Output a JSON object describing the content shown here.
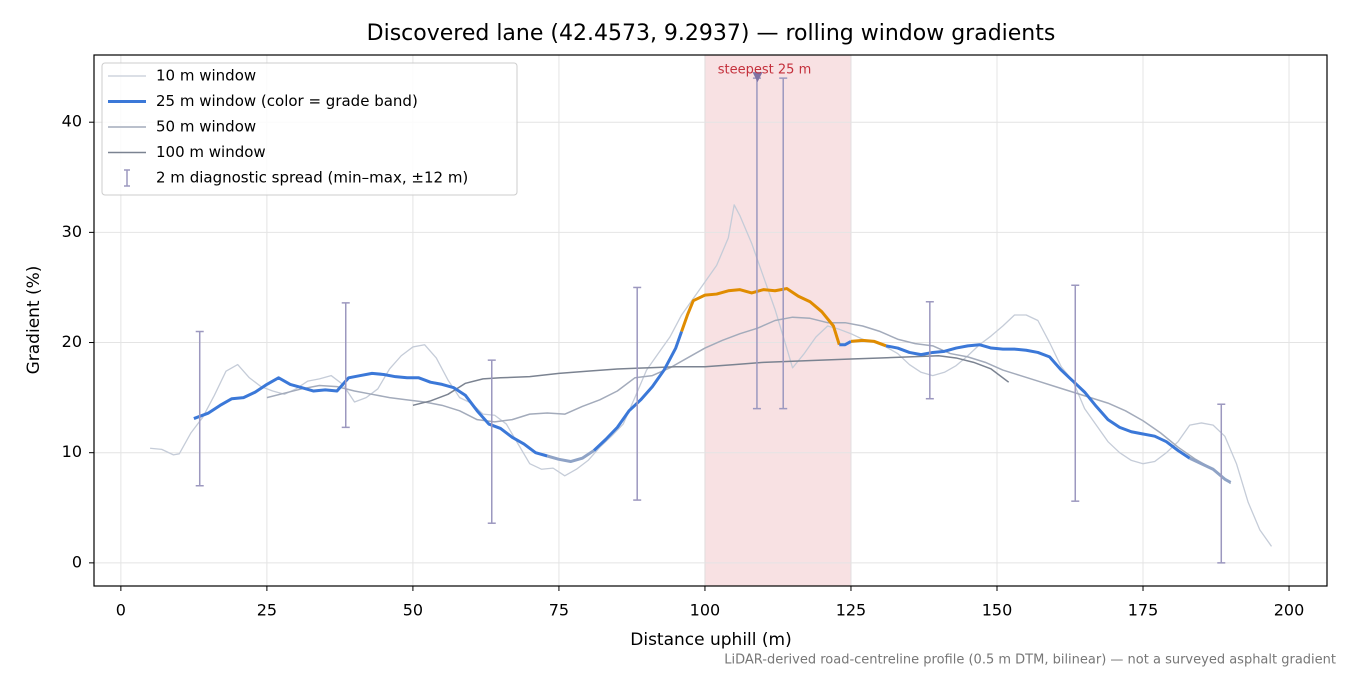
{
  "chart_data": {
    "type": "line",
    "title": "Discovered lane (42.4573, 9.2937) — rolling window gradients",
    "x_label": "Distance uphill (m)",
    "y_label": "Gradient (%)",
    "footnote": "LiDAR-derived road-centreline profile (0.5 m DTM, bilinear) — not a surveyed asphalt gradient",
    "xlim": [
      -4.6,
      206.5
    ],
    "ylim": [
      -2.1,
      46.1
    ],
    "xticks": [
      0,
      25,
      50,
      75,
      100,
      125,
      150,
      175,
      200
    ],
    "yticks": [
      0,
      10,
      20,
      30,
      40
    ],
    "grid": true,
    "legend": "upper left",
    "series": [
      {
        "name": "10 m window",
        "color": "#c5ccd8",
        "width": 1.3,
        "x": [
          5,
          7,
          9,
          10,
          12,
          14,
          16,
          18,
          20,
          22,
          24,
          26,
          28,
          30,
          32,
          34,
          36,
          38,
          40,
          42,
          44,
          46,
          48,
          50,
          52,
          54,
          56,
          58,
          60,
          62,
          64,
          66,
          68,
          70,
          72,
          74,
          76,
          78,
          80,
          82,
          84,
          86,
          88,
          90,
          92,
          94,
          96,
          98,
          100,
          102,
          104,
          105,
          106,
          108,
          110,
          112,
          114,
          115,
          117,
          119,
          121,
          123,
          125,
          127,
          129,
          131,
          133,
          135,
          137,
          139,
          141,
          143,
          145,
          147,
          149,
          151,
          153,
          155,
          157,
          159,
          161,
          163,
          165,
          167,
          169,
          171,
          173,
          175,
          177,
          179,
          181,
          183,
          185,
          187,
          189,
          191,
          193,
          195,
          197
        ],
        "values": [
          10.4,
          10.3,
          9.8,
          9.9,
          11.8,
          13.2,
          15.2,
          17.4,
          18.0,
          16.8,
          16.0,
          15.6,
          15.3,
          15.8,
          16.5,
          16.7,
          17.0,
          16.2,
          14.6,
          15.0,
          15.8,
          17.6,
          18.8,
          19.6,
          19.8,
          18.6,
          16.6,
          15.0,
          14.5,
          13.5,
          13.4,
          12.6,
          10.8,
          9.0,
          8.5,
          8.6,
          7.9,
          8.5,
          9.3,
          10.5,
          11.5,
          12.6,
          15.0,
          17.5,
          19.0,
          20.5,
          22.5,
          24.0,
          25.5,
          27.0,
          29.5,
          32.5,
          31.5,
          29.0,
          26.0,
          23.0,
          19.5,
          17.7,
          19.0,
          20.5,
          21.5,
          21.2,
          20.8,
          20.3,
          20.0,
          19.6,
          19.0,
          18.0,
          17.3,
          17.0,
          17.3,
          17.9,
          18.8,
          19.8,
          20.6,
          21.5,
          22.5,
          22.5,
          22.0,
          20.0,
          17.8,
          16.5,
          14.0,
          12.5,
          11.0,
          10.0,
          9.3,
          9.0,
          9.2,
          10.0,
          11.0,
          12.5,
          12.7,
          12.5,
          11.5,
          9.0,
          5.5,
          3.0,
          1.5
        ]
      },
      {
        "name": "25 m window (color = grade band)",
        "color": "#3b78d8",
        "width": 3,
        "grade_band_limits": [
          10,
          20
        ],
        "grade_band_colors": [
          "#8fa3c6",
          "#3b78d8",
          "#e08c00"
        ],
        "x": [
          12.5,
          15,
          17,
          19,
          21,
          23,
          25,
          27,
          29,
          31,
          33,
          35,
          37,
          39,
          41,
          43,
          45,
          47,
          49,
          51,
          53,
          55,
          57,
          59,
          61,
          63,
          65,
          67,
          69,
          71,
          73,
          75,
          77,
          79,
          81,
          83,
          85,
          87,
          89,
          91,
          93,
          95,
          96,
          97,
          98,
          100,
          102,
          104,
          106,
          108,
          110,
          112,
          114,
          116,
          118,
          120,
          122,
          123,
          124,
          125,
          127,
          129,
          131,
          133,
          135,
          137,
          139,
          141,
          143,
          145,
          147,
          149,
          151,
          153,
          155,
          157,
          159,
          161,
          163,
          165,
          167,
          169,
          171,
          173,
          175,
          177,
          179,
          181,
          183,
          185,
          187,
          189,
          190
        ],
        "values": [
          13.1,
          13.6,
          14.3,
          14.9,
          15.0,
          15.5,
          16.2,
          16.8,
          16.2,
          15.9,
          15.6,
          15.7,
          15.6,
          16.8,
          17.0,
          17.2,
          17.1,
          16.9,
          16.8,
          16.8,
          16.4,
          16.2,
          15.9,
          15.2,
          13.8,
          12.6,
          12.2,
          11.4,
          10.8,
          10.0,
          9.7,
          9.4,
          9.2,
          9.5,
          10.2,
          11.2,
          12.3,
          13.8,
          14.8,
          16.0,
          17.5,
          19.5,
          21.0,
          22.5,
          23.8,
          24.3,
          24.4,
          24.7,
          24.8,
          24.5,
          24.8,
          24.7,
          24.9,
          24.2,
          23.7,
          22.8,
          21.5,
          19.8,
          19.8,
          20.1,
          20.2,
          20.1,
          19.7,
          19.5,
          19.1,
          18.9,
          19.1,
          19.2,
          19.5,
          19.7,
          19.8,
          19.5,
          19.4,
          19.4,
          19.3,
          19.1,
          18.7,
          17.5,
          16.5,
          15.5,
          14.2,
          13.0,
          12.3,
          11.9,
          11.7,
          11.5,
          11.0,
          10.2,
          9.5,
          9.0,
          8.5,
          7.6,
          7.3
        ]
      },
      {
        "name": "50 m window",
        "color": "#a3abbb",
        "width": 1.5,
        "x": [
          25,
          28,
          31,
          34,
          37,
          40,
          43,
          46,
          49,
          52,
          55,
          58,
          61,
          64,
          67,
          70,
          73,
          76,
          79,
          82,
          85,
          88,
          91,
          94,
          97,
          100,
          103,
          106,
          109,
          112,
          115,
          118,
          121,
          124,
          127,
          130,
          133,
          136,
          139,
          142,
          145,
          148,
          151,
          154,
          157,
          160,
          163,
          166,
          169,
          172,
          175,
          178,
          181,
          184,
          187,
          190
        ],
        "values": [
          15.0,
          15.4,
          15.8,
          16.1,
          16.0,
          15.6,
          15.3,
          15.0,
          14.8,
          14.6,
          14.3,
          13.8,
          13.0,
          12.8,
          13.0,
          13.5,
          13.6,
          13.5,
          14.2,
          14.8,
          15.6,
          16.8,
          17.0,
          17.7,
          18.6,
          19.5,
          20.2,
          20.8,
          21.3,
          22.0,
          22.3,
          22.2,
          21.8,
          21.8,
          21.5,
          21.0,
          20.3,
          19.9,
          19.7,
          19.0,
          18.7,
          18.2,
          17.5,
          17.0,
          16.5,
          16.0,
          15.5,
          15.0,
          14.5,
          13.8,
          12.9,
          11.8,
          10.5,
          9.4,
          8.5,
          7.2
        ]
      },
      {
        "name": "100 m window",
        "color": "#7b8391",
        "width": 1.5,
        "x": [
          50,
          53,
          56,
          59,
          62,
          65,
          70,
          75,
          80,
          85,
          90,
          95,
          100,
          105,
          110,
          115,
          120,
          125,
          130,
          135,
          140,
          143,
          146,
          149,
          152
        ],
        "values": [
          14.3,
          14.7,
          15.3,
          16.3,
          16.7,
          16.8,
          16.9,
          17.2,
          17.4,
          17.6,
          17.7,
          17.8,
          17.8,
          18.0,
          18.2,
          18.3,
          18.4,
          18.5,
          18.6,
          18.7,
          18.8,
          18.6,
          18.2,
          17.6,
          16.4
        ]
      }
    ],
    "errorbars": {
      "name": "2 m diagnostic spread (min–max, ±12 m)",
      "color": "#9c98bf",
      "x": [
        13.5,
        38.5,
        63.5,
        88.4,
        108.9,
        113.4,
        138.5,
        163.4,
        188.4
      ],
      "low": [
        7.0,
        12.3,
        3.6,
        5.7,
        14.0,
        14.0,
        14.9,
        5.6,
        0.0
      ],
      "high": [
        21.0,
        23.6,
        18.4,
        25.0,
        44.0,
        44.0,
        23.7,
        25.2,
        14.4
      ]
    },
    "highlight": {
      "label": "steepest 25 m",
      "span": [
        100,
        125
      ],
      "x": 109,
      "y": 44,
      "color": "#f2c8cc",
      "label_color": "#c4303c",
      "marker_color": "#7f72a4"
    }
  }
}
